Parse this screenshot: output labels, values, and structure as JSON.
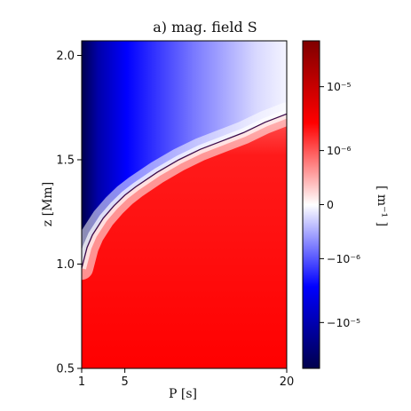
{
  "chart_data": {
    "type": "heatmap",
    "title": "a) mag. field S",
    "xlabel": "P [s]",
    "ylabel": "z [Mm]",
    "xlim": [
      1,
      20
    ],
    "ylim": [
      0.5,
      2.07
    ],
    "x_ticks": [
      {
        "value": 1,
        "label": "1"
      },
      {
        "value": 5,
        "label": "5"
      },
      {
        "value": 20,
        "label": "20"
      }
    ],
    "y_ticks": [
      {
        "value": 0.5,
        "label": "0.5"
      },
      {
        "value": 1.0,
        "label": "1.0"
      },
      {
        "value": 1.5,
        "label": "1.5"
      },
      {
        "value": 2.0,
        "label": "2.0"
      }
    ],
    "colormap": "seismic",
    "colorbar": {
      "label": "[ m⁻¹ ]",
      "scale": "symlog",
      "ticks": [
        {
          "value": 1e-05,
          "label": "10⁻⁵"
        },
        {
          "value": 1e-06,
          "label": "10⁻⁶"
        },
        {
          "value": 0,
          "label": "0"
        },
        {
          "value": -1e-06,
          "label": "−10⁻⁶"
        },
        {
          "value": -1e-05,
          "label": "−10⁻⁵"
        }
      ]
    },
    "zero_contour": {
      "color": "#3b0a4a",
      "points": [
        {
          "x": 1.0,
          "y": 0.98
        },
        {
          "x": 1.5,
          "y": 1.08
        },
        {
          "x": 2.0,
          "y": 1.14
        },
        {
          "x": 3.0,
          "y": 1.22
        },
        {
          "x": 4.0,
          "y": 1.28
        },
        {
          "x": 5.0,
          "y": 1.33
        },
        {
          "x": 6.0,
          "y": 1.37
        },
        {
          "x": 8.0,
          "y": 1.44
        },
        {
          "x": 10.0,
          "y": 1.5
        },
        {
          "x": 12.0,
          "y": 1.55
        },
        {
          "x": 14.0,
          "y": 1.59
        },
        {
          "x": 16.0,
          "y": 1.63
        },
        {
          "x": 18.0,
          "y": 1.68
        },
        {
          "x": 20.0,
          "y": 1.72
        }
      ]
    },
    "colors": {
      "positive": "#ff0000",
      "negative": "#0000ff",
      "zero": "#ffffff",
      "max_positive": "#7f0000",
      "max_negative": "#00004c"
    }
  }
}
